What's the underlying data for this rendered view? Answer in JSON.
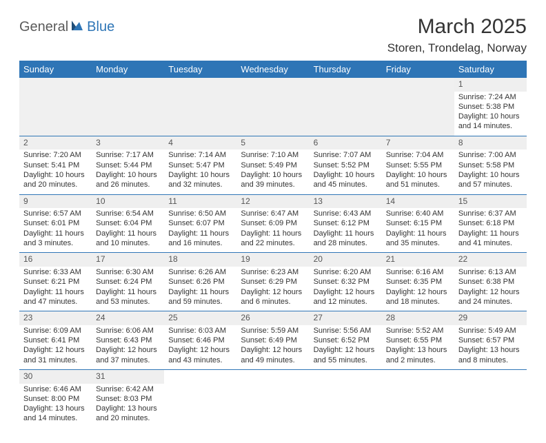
{
  "logo": {
    "part1": "General",
    "part2": "Blue"
  },
  "title": "March 2025",
  "location": "Storen, Trondelag, Norway",
  "dayHeaders": [
    "Sunday",
    "Monday",
    "Tuesday",
    "Wednesday",
    "Thursday",
    "Friday",
    "Saturday"
  ],
  "colors": {
    "headerBg": "#2e75b6",
    "headerFg": "#ffffff",
    "brandBlue": "#2e75b6",
    "brandGray": "#5a5a5a",
    "text": "#333333",
    "emptyBg": "#f0f0f0",
    "dayNumBg": "#efefef",
    "rowBorder": "#2e75b6"
  },
  "weeks": [
    [
      null,
      null,
      null,
      null,
      null,
      null,
      {
        "n": "1",
        "sr": "Sunrise: 7:24 AM",
        "ss": "Sunset: 5:38 PM",
        "dl1": "Daylight: 10 hours",
        "dl2": "and 14 minutes."
      }
    ],
    [
      {
        "n": "2",
        "sr": "Sunrise: 7:20 AM",
        "ss": "Sunset: 5:41 PM",
        "dl1": "Daylight: 10 hours",
        "dl2": "and 20 minutes."
      },
      {
        "n": "3",
        "sr": "Sunrise: 7:17 AM",
        "ss": "Sunset: 5:44 PM",
        "dl1": "Daylight: 10 hours",
        "dl2": "and 26 minutes."
      },
      {
        "n": "4",
        "sr": "Sunrise: 7:14 AM",
        "ss": "Sunset: 5:47 PM",
        "dl1": "Daylight: 10 hours",
        "dl2": "and 32 minutes."
      },
      {
        "n": "5",
        "sr": "Sunrise: 7:10 AM",
        "ss": "Sunset: 5:49 PM",
        "dl1": "Daylight: 10 hours",
        "dl2": "and 39 minutes."
      },
      {
        "n": "6",
        "sr": "Sunrise: 7:07 AM",
        "ss": "Sunset: 5:52 PM",
        "dl1": "Daylight: 10 hours",
        "dl2": "and 45 minutes."
      },
      {
        "n": "7",
        "sr": "Sunrise: 7:04 AM",
        "ss": "Sunset: 5:55 PM",
        "dl1": "Daylight: 10 hours",
        "dl2": "and 51 minutes."
      },
      {
        "n": "8",
        "sr": "Sunrise: 7:00 AM",
        "ss": "Sunset: 5:58 PM",
        "dl1": "Daylight: 10 hours",
        "dl2": "and 57 minutes."
      }
    ],
    [
      {
        "n": "9",
        "sr": "Sunrise: 6:57 AM",
        "ss": "Sunset: 6:01 PM",
        "dl1": "Daylight: 11 hours",
        "dl2": "and 3 minutes."
      },
      {
        "n": "10",
        "sr": "Sunrise: 6:54 AM",
        "ss": "Sunset: 6:04 PM",
        "dl1": "Daylight: 11 hours",
        "dl2": "and 10 minutes."
      },
      {
        "n": "11",
        "sr": "Sunrise: 6:50 AM",
        "ss": "Sunset: 6:07 PM",
        "dl1": "Daylight: 11 hours",
        "dl2": "and 16 minutes."
      },
      {
        "n": "12",
        "sr": "Sunrise: 6:47 AM",
        "ss": "Sunset: 6:09 PM",
        "dl1": "Daylight: 11 hours",
        "dl2": "and 22 minutes."
      },
      {
        "n": "13",
        "sr": "Sunrise: 6:43 AM",
        "ss": "Sunset: 6:12 PM",
        "dl1": "Daylight: 11 hours",
        "dl2": "and 28 minutes."
      },
      {
        "n": "14",
        "sr": "Sunrise: 6:40 AM",
        "ss": "Sunset: 6:15 PM",
        "dl1": "Daylight: 11 hours",
        "dl2": "and 35 minutes."
      },
      {
        "n": "15",
        "sr": "Sunrise: 6:37 AM",
        "ss": "Sunset: 6:18 PM",
        "dl1": "Daylight: 11 hours",
        "dl2": "and 41 minutes."
      }
    ],
    [
      {
        "n": "16",
        "sr": "Sunrise: 6:33 AM",
        "ss": "Sunset: 6:21 PM",
        "dl1": "Daylight: 11 hours",
        "dl2": "and 47 minutes."
      },
      {
        "n": "17",
        "sr": "Sunrise: 6:30 AM",
        "ss": "Sunset: 6:24 PM",
        "dl1": "Daylight: 11 hours",
        "dl2": "and 53 minutes."
      },
      {
        "n": "18",
        "sr": "Sunrise: 6:26 AM",
        "ss": "Sunset: 6:26 PM",
        "dl1": "Daylight: 11 hours",
        "dl2": "and 59 minutes."
      },
      {
        "n": "19",
        "sr": "Sunrise: 6:23 AM",
        "ss": "Sunset: 6:29 PM",
        "dl1": "Daylight: 12 hours",
        "dl2": "and 6 minutes."
      },
      {
        "n": "20",
        "sr": "Sunrise: 6:20 AM",
        "ss": "Sunset: 6:32 PM",
        "dl1": "Daylight: 12 hours",
        "dl2": "and 12 minutes."
      },
      {
        "n": "21",
        "sr": "Sunrise: 6:16 AM",
        "ss": "Sunset: 6:35 PM",
        "dl1": "Daylight: 12 hours",
        "dl2": "and 18 minutes."
      },
      {
        "n": "22",
        "sr": "Sunrise: 6:13 AM",
        "ss": "Sunset: 6:38 PM",
        "dl1": "Daylight: 12 hours",
        "dl2": "and 24 minutes."
      }
    ],
    [
      {
        "n": "23",
        "sr": "Sunrise: 6:09 AM",
        "ss": "Sunset: 6:41 PM",
        "dl1": "Daylight: 12 hours",
        "dl2": "and 31 minutes."
      },
      {
        "n": "24",
        "sr": "Sunrise: 6:06 AM",
        "ss": "Sunset: 6:43 PM",
        "dl1": "Daylight: 12 hours",
        "dl2": "and 37 minutes."
      },
      {
        "n": "25",
        "sr": "Sunrise: 6:03 AM",
        "ss": "Sunset: 6:46 PM",
        "dl1": "Daylight: 12 hours",
        "dl2": "and 43 minutes."
      },
      {
        "n": "26",
        "sr": "Sunrise: 5:59 AM",
        "ss": "Sunset: 6:49 PM",
        "dl1": "Daylight: 12 hours",
        "dl2": "and 49 minutes."
      },
      {
        "n": "27",
        "sr": "Sunrise: 5:56 AM",
        "ss": "Sunset: 6:52 PM",
        "dl1": "Daylight: 12 hours",
        "dl2": "and 55 minutes."
      },
      {
        "n": "28",
        "sr": "Sunrise: 5:52 AM",
        "ss": "Sunset: 6:55 PM",
        "dl1": "Daylight: 13 hours",
        "dl2": "and 2 minutes."
      },
      {
        "n": "29",
        "sr": "Sunrise: 5:49 AM",
        "ss": "Sunset: 6:57 PM",
        "dl1": "Daylight: 13 hours",
        "dl2": "and 8 minutes."
      }
    ],
    [
      {
        "n": "30",
        "sr": "Sunrise: 6:46 AM",
        "ss": "Sunset: 8:00 PM",
        "dl1": "Daylight: 13 hours",
        "dl2": "and 14 minutes."
      },
      {
        "n": "31",
        "sr": "Sunrise: 6:42 AM",
        "ss": "Sunset: 8:03 PM",
        "dl1": "Daylight: 13 hours",
        "dl2": "and 20 minutes."
      },
      null,
      null,
      null,
      null,
      null
    ]
  ]
}
